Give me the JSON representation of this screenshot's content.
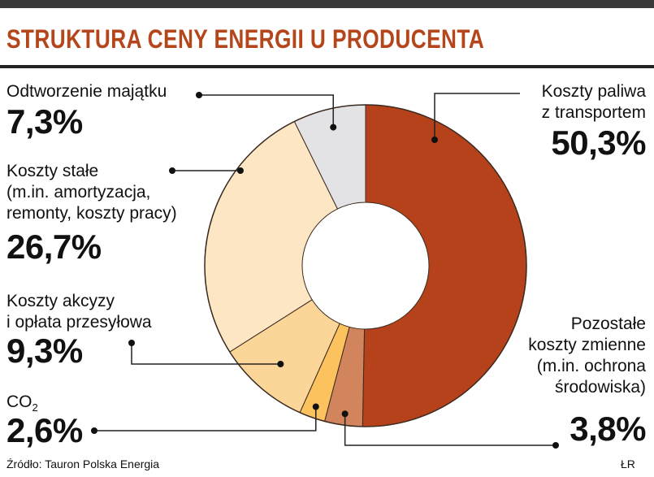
{
  "title": "STRUKTURA CENY ENERGII U PRODUCENTA",
  "source": "Źródło: Tauron Polska Energia",
  "author": "ŁR",
  "chart_data": {
    "type": "pie",
    "title": "STRUKTURA CENY ENERGII U PRODUCENTA",
    "slices": [
      {
        "label": "Koszty paliwa z transportem",
        "value": 50.3,
        "display": "50,3%",
        "color": "#b5421a"
      },
      {
        "label": "Pozostałe koszty zmienne (m.in. ochrona środowiska)",
        "value": 3.8,
        "display": "3,8%",
        "color": "#d2845c"
      },
      {
        "label": "CO2",
        "value": 2.6,
        "display": "2,6%",
        "color": "#fbc25e"
      },
      {
        "label": "Koszty akcyzy i opłata przesyłowa",
        "value": 9.3,
        "display": "9,3%",
        "color": "#fcd699"
      },
      {
        "label": "Koszty stałe (m.in. amortyzacja, remonty, koszty pracy)",
        "value": 26.7,
        "display": "26,7%",
        "color": "#fde6c3"
      },
      {
        "label": "Odtworzenie majątku",
        "value": 7.3,
        "display": "7,3%",
        "color": "#e3e3e5"
      }
    ]
  },
  "labels": {
    "fuel": {
      "text": "Koszty paliwa\nz transportem",
      "value": "50,3%"
    },
    "other_variable": {
      "text": "Pozostałe\nkoszty zmienne\n(m.in. ochrona\nśrodowiska)",
      "value": "3,8%"
    },
    "co2": {
      "text": "CO",
      "sub": "2",
      "value": "2,6%"
    },
    "excise": {
      "text": "Koszty akcyzy\ni opłata przesyłowa",
      "value": "9,3%"
    },
    "fixed": {
      "text": "Koszty stałe\n(m.in. amortyzacja,\nremonty, koszty pracy)",
      "value": "26,7%"
    },
    "assets": {
      "text": "Odtworzenie majątku",
      "value": "7,3%"
    }
  }
}
